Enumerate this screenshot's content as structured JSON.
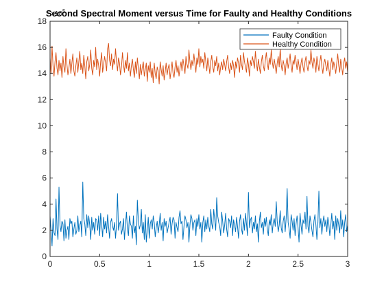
{
  "chart_data": {
    "type": "line",
    "title": "Second Spectral Moment versus Time for Faulty and Healthy Conditions",
    "y_exponent_label": "×10",
    "y_exponent_power": "5",
    "xlabel": "",
    "ylabel": "",
    "xlim": [
      0,
      3
    ],
    "ylim": [
      0,
      18
    ],
    "xticks": [
      "0",
      "0.5",
      "1",
      "1.5",
      "2",
      "2.5",
      "3"
    ],
    "yticks": [
      "0",
      "2",
      "4",
      "6",
      "8",
      "10",
      "12",
      "14",
      "16",
      "18"
    ],
    "grid": false,
    "legend_position": "top-right",
    "series": [
      {
        "name": "Faulty Condition",
        "color": "#0072BD",
        "x_start": 0,
        "x_step": 0.01,
        "values": [
          3.1,
          2.0,
          0.8,
          2.9,
          1.8,
          1.6,
          4.4,
          2.1,
          1.3,
          5.3,
          2.4,
          1.9,
          2.7,
          2.5,
          1.2,
          2.8,
          1.4,
          2.0,
          2.3,
          1.3,
          2.9,
          2.5,
          2.7,
          1.5,
          2.1,
          2.6,
          1.7,
          2.0,
          3.1,
          1.9,
          2.4,
          2.7,
          1.5,
          5.7,
          2.9,
          2.5,
          1.6,
          3.2,
          2.2,
          3.1,
          2.4,
          1.3,
          3.0,
          2.0,
          2.6,
          1.7,
          2.9,
          2.8,
          2.0,
          3.1,
          1.6,
          3.3,
          2.4,
          1.5,
          3.0,
          2.1,
          2.7,
          1.8,
          3.2,
          2.3,
          1.4,
          2.6,
          2.9,
          2.3,
          2.0,
          2.6,
          1.4,
          2.4,
          4.8,
          2.0,
          2.5,
          2.7,
          1.7,
          2.1,
          2.9,
          1.3,
          2.4,
          3.4,
          2.1,
          1.6,
          3.1,
          2.5,
          2.3,
          1.4,
          3.1,
          1.8,
          2.3,
          0.9,
          4.3,
          2.8,
          2.1,
          2.4,
          3.6,
          1.8,
          2.6,
          1.3,
          3.2,
          1.1,
          2.0,
          3.0,
          1.4,
          2.5,
          2.8,
          2.1,
          3.1,
          2.6,
          1.5,
          2.2,
          2.7,
          1.8,
          2.4,
          3.3,
          2.0,
          2.6,
          1.2,
          2.9,
          2.3,
          2.7,
          1.8,
          2.2,
          2.6,
          3.0,
          1.7,
          2.5,
          3.0,
          2.8,
          1.4,
          2.6,
          2.2,
          1.9,
          3.0,
          3.5,
          2.5,
          2.7,
          1.3,
          2.3,
          3.1,
          2.8,
          2.2,
          2.6,
          1.1,
          2.4,
          3.2,
          2.9,
          2.0,
          2.6,
          2.8,
          1.6,
          2.9,
          2.3,
          3.2,
          2.1,
          2.6,
          1.1,
          2.6,
          3.1,
          1.9,
          2.8,
          2.1,
          3.0,
          2.3,
          1.9,
          3.6,
          2.5,
          2.1,
          3.6,
          2.8,
          2.0,
          4.5,
          3.1,
          2.6,
          2.3,
          1.6,
          3.4,
          2.7,
          1.8,
          2.4,
          3.3,
          2.1,
          1.5,
          2.9,
          2.7,
          2.2,
          3.1,
          1.6,
          2.8,
          2.4,
          1.9,
          3.0,
          2.3,
          1.4,
          2.7,
          3.2,
          2.1,
          1.7,
          2.9,
          2.0,
          3.3,
          2.5,
          1.6,
          4.9,
          2.2,
          2.8,
          3.0,
          1.8,
          2.6,
          2.1,
          3.1,
          1.9,
          2.5,
          1.1,
          2.7,
          3.4,
          2.2,
          2.6,
          1.7,
          2.9,
          2.3,
          3.0,
          2.1,
          1.6,
          2.8,
          2.4,
          3.2,
          1.8,
          2.6,
          2.9,
          2.3,
          4.2,
          2.7,
          1.9,
          2.4,
          3.5,
          2.2,
          1.8,
          2.7,
          3.1,
          1.9,
          2.9,
          5.2,
          2.6,
          2.1,
          1.4,
          3.2,
          2.7,
          2.0,
          2.9,
          1.6,
          2.5,
          3.1,
          2.2,
          1.1,
          3.3,
          2.4,
          1.7,
          2.8,
          2.5,
          3.4,
          2.1,
          4.6,
          2.3,
          1.8,
          3.1,
          2.6,
          2.0,
          1.5,
          2.7,
          3.2,
          2.4,
          1.3,
          2.6,
          5.0,
          2.2,
          2.9,
          1.7,
          2.6,
          3.1,
          2.3,
          2.8,
          1.9,
          3.0,
          2.5,
          1.6,
          2.4,
          3.3,
          2.1,
          2.7,
          1.3,
          3.1,
          2.0,
          2.9,
          2.4,
          1.8,
          3.5,
          2.1,
          2.8,
          1.5,
          2.6,
          3.2,
          1.9,
          2.4,
          1.0,
          2.8,
          3.6,
          2.2,
          1.7,
          4.5,
          2.6,
          2.0,
          3.0,
          2.3,
          1.6,
          2.9,
          2.4,
          3.3,
          1.8,
          2.6,
          1.2,
          3.1,
          2.2,
          2.8,
          1.7,
          2.4,
          4.2,
          2.5,
          1.6,
          3.5,
          2.1,
          1.2,
          3.6,
          2.3,
          1.3,
          2.6,
          2.2
        ]
      },
      {
        "name": "Healthy Condition",
        "color": "#D95319",
        "x_start": 0,
        "x_step": 0.01,
        "values": [
          15.2,
          14.0,
          16.1,
          14.6,
          13.8,
          14.9,
          15.6,
          14.4,
          13.9,
          15.0,
          14.2,
          14.8,
          13.7,
          15.3,
          14.5,
          14.1,
          15.9,
          14.7,
          13.9,
          14.4,
          15.1,
          14.0,
          14.8,
          15.5,
          14.2,
          13.8,
          14.6,
          15.2,
          14.1,
          14.9,
          15.7,
          14.3,
          14.8,
          14.0,
          15.4,
          14.6,
          13.6,
          14.9,
          15.3,
          14.2,
          14.7,
          15.8,
          14.4,
          13.9,
          15.0,
          14.5,
          16.0,
          14.3,
          15.1,
          14.6,
          13.8,
          14.9,
          15.6,
          14.1,
          14.7,
          15.3,
          14.8,
          14.2,
          15.9,
          16.3,
          15.0,
          14.6,
          15.5,
          14.3,
          15.1,
          14.7,
          15.9,
          14.9,
          14.2,
          15.2,
          14.8,
          13.9,
          14.5,
          15.6,
          14.7,
          14.1,
          15.0,
          14.4,
          15.6,
          14.2,
          14.8,
          13.8,
          14.6,
          15.1,
          14.3,
          13.7,
          14.9,
          14.0,
          15.2,
          14.4,
          13.6,
          14.7,
          13.9,
          14.5,
          14.9,
          13.8,
          14.3,
          14.8,
          13.4,
          14.6,
          14.1,
          14.9,
          13.7,
          14.4,
          13.3,
          14.8,
          14.0,
          13.6,
          14.5,
          14.2,
          13.2,
          14.9,
          14.3,
          13.8,
          14.6,
          13.5,
          14.1,
          14.8,
          13.9,
          14.4,
          14.7,
          13.6,
          14.2,
          14.9,
          14.0,
          13.7,
          14.5,
          15.0,
          14.1,
          14.6,
          13.8,
          14.4,
          14.9,
          14.2,
          15.1,
          14.6,
          14.0,
          15.3,
          14.7,
          14.4,
          15.8,
          14.9,
          14.3,
          15.0,
          14.6,
          15.5,
          14.8,
          14.1,
          15.2,
          14.7,
          15.9,
          14.5,
          15.3,
          14.8,
          15.1,
          14.4,
          15.6,
          14.9,
          14.2,
          15.2,
          14.7,
          14.0,
          14.9,
          15.4,
          14.5,
          14.1,
          15.0,
          14.6,
          15.3,
          14.2,
          14.8,
          13.9,
          14.5,
          14.9,
          14.3,
          15.1,
          14.7,
          14.2,
          14.9,
          15.4,
          14.5,
          14.0,
          14.8,
          14.3,
          15.0,
          14.6,
          13.7,
          14.9,
          14.4,
          15.2,
          14.8,
          14.1,
          15.4,
          14.7,
          14.3,
          15.6,
          14.9,
          14.5,
          14.1,
          15.2,
          14.7,
          13.8,
          15.0,
          14.6,
          15.3,
          14.9,
          14.4,
          15.7,
          14.8,
          14.2,
          15.1,
          14.5,
          14.0,
          14.9,
          15.4,
          14.6,
          14.2,
          15.0,
          15.6,
          14.8,
          14.3,
          15.2,
          14.7,
          15.8,
          14.9,
          14.4,
          15.1,
          14.6,
          14.0,
          14.8,
          15.3,
          14.5,
          15.9,
          14.7,
          14.2,
          15.0,
          14.6,
          13.9,
          14.8,
          15.2,
          14.4,
          14.9,
          15.5,
          14.6,
          14.1,
          15.0,
          14.7,
          15.4,
          14.9,
          14.3,
          15.1,
          14.6,
          14.0,
          14.8,
          15.2,
          14.5,
          14.1,
          14.9,
          15.3,
          14.6,
          14.2,
          15.0,
          14.7,
          15.8,
          14.9,
          14.4,
          15.2,
          14.8,
          14.1,
          15.3,
          14.7,
          14.2,
          14.9,
          15.4,
          14.5,
          14.0,
          14.8,
          15.1,
          14.6,
          14.2,
          15.0,
          14.4,
          13.8,
          14.7,
          15.2,
          14.3,
          14.9,
          14.5,
          14.0,
          14.8,
          15.5,
          14.6,
          14.1,
          15.1,
          14.5,
          13.9,
          14.8,
          15.2,
          14.4,
          14.9,
          14.1,
          15.6,
          14.6,
          14.0,
          14.9,
          14.3,
          15.0,
          14.7,
          14.2,
          15.4,
          13.6,
          14.6,
          14.9,
          13.8,
          14.2,
          15.0,
          14.5,
          13.1,
          12.8,
          14.3,
          14.9,
          14.0,
          15.2,
          13.7,
          14.6,
          14.8,
          13.9,
          14.7,
          14.4,
          14.9,
          14.6
        ]
      }
    ]
  }
}
